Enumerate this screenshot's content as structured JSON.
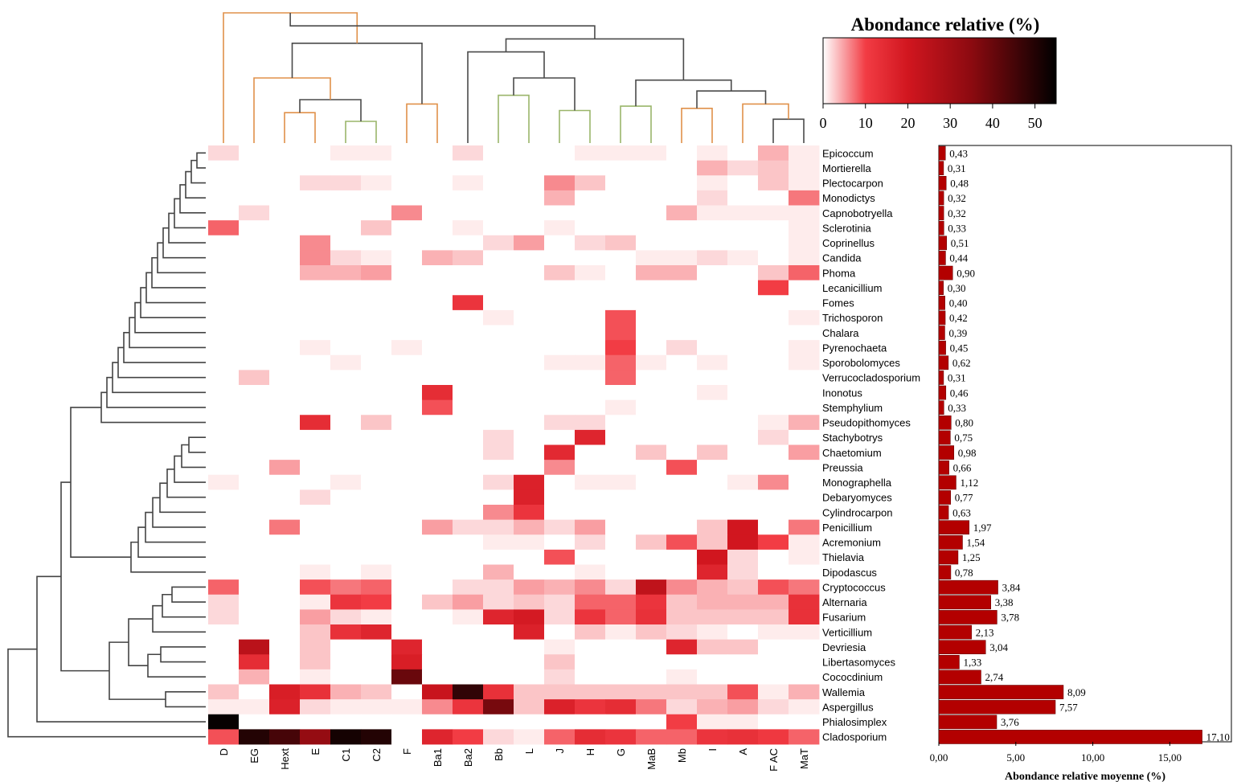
{
  "chart_data": [
    {
      "type": "heatmap",
      "title": "",
      "columns": [
        "D",
        "EG",
        "Hext",
        "E",
        "C1",
        "C2",
        "F",
        "Ba1",
        "Ba2",
        "Bb",
        "L",
        "J",
        "H",
        "G",
        "MaB",
        "Mb",
        "I",
        "A",
        "F AC",
        "MaT"
      ],
      "rows": [
        "Epicoccum",
        "Mortierella",
        "Plectocarpon",
        "Monodictys",
        "Capnobotryella",
        "Sclerotinia",
        "Coprinellus",
        "Candida",
        "Phoma",
        "Lecanicillium",
        "Fomes",
        "Trichosporon",
        "Chalara",
        "Pyrenochaeta",
        "Sporobolomyces",
        "Verrucocladosporium",
        "Inonotus",
        "Stemphylium",
        "Pseudopithomyces",
        "Stachybotrys",
        "Chaetomium",
        "Preussia",
        "Monographella",
        "Debaryomyces",
        "Cylindrocarpon",
        "Penicillium",
        "Acremonium",
        "Thielavia",
        "Dipodascus",
        "Cryptococcus",
        "Alternaria",
        "Fusarium",
        "Verticillium",
        "Devriesia",
        "Libertasomyces",
        "Cococdinium",
        "Wallemia",
        "Aspergillus",
        "Phialosimplex",
        "Cladosporium"
      ],
      "values": [
        [
          2,
          0,
          0,
          0,
          1,
          1,
          0,
          0,
          2,
          0,
          0,
          0,
          1,
          1,
          1,
          0,
          1,
          0,
          4,
          1
        ],
        [
          0,
          0,
          0,
          0,
          0,
          0,
          0,
          0,
          0,
          0,
          0,
          0,
          0,
          0,
          0,
          0,
          4,
          2,
          3,
          1
        ],
        [
          0,
          0,
          0,
          2,
          2,
          1,
          0,
          0,
          1,
          0,
          0,
          6,
          3,
          0,
          0,
          0,
          1,
          0,
          3,
          1
        ],
        [
          0,
          0,
          0,
          0,
          0,
          0,
          0,
          0,
          0,
          0,
          0,
          4,
          0,
          0,
          0,
          0,
          2,
          0,
          0,
          7
        ],
        [
          0,
          2,
          0,
          0,
          0,
          0,
          6,
          0,
          0,
          0,
          0,
          0,
          0,
          0,
          0,
          4,
          1,
          1,
          1,
          1
        ],
        [
          8,
          0,
          0,
          0,
          0,
          3,
          0,
          0,
          1,
          0,
          0,
          1,
          0,
          0,
          0,
          0,
          0,
          0,
          0,
          1
        ],
        [
          0,
          0,
          0,
          6,
          0,
          0,
          0,
          0,
          0,
          2,
          5,
          0,
          2,
          3,
          0,
          0,
          0,
          0,
          0,
          1
        ],
        [
          0,
          0,
          0,
          6,
          2,
          1,
          0,
          4,
          3,
          0,
          0,
          0,
          0,
          0,
          1,
          1,
          2,
          1,
          0,
          1
        ],
        [
          0,
          0,
          0,
          4,
          4,
          5,
          0,
          0,
          0,
          0,
          0,
          3,
          1,
          0,
          4,
          4,
          0,
          0,
          3,
          8
        ],
        [
          0,
          0,
          0,
          0,
          0,
          0,
          0,
          0,
          0,
          0,
          0,
          0,
          0,
          0,
          0,
          0,
          0,
          0,
          10,
          0
        ],
        [
          0,
          0,
          0,
          0,
          0,
          0,
          0,
          0,
          12,
          0,
          0,
          0,
          0,
          0,
          0,
          0,
          0,
          0,
          0,
          0
        ],
        [
          0,
          0,
          0,
          0,
          0,
          0,
          0,
          0,
          0,
          1,
          0,
          0,
          0,
          9,
          0,
          0,
          0,
          0,
          0,
          1
        ],
        [
          0,
          0,
          0,
          0,
          0,
          0,
          0,
          0,
          0,
          0,
          0,
          0,
          0,
          9,
          0,
          0,
          0,
          0,
          0,
          0
        ],
        [
          0,
          0,
          0,
          1,
          0,
          0,
          1,
          0,
          0,
          0,
          0,
          0,
          0,
          10,
          0,
          2,
          0,
          0,
          0,
          1
        ],
        [
          0,
          0,
          0,
          0,
          1,
          0,
          0,
          0,
          0,
          0,
          0,
          1,
          1,
          8,
          1,
          0,
          1,
          0,
          0,
          1
        ],
        [
          0,
          3,
          0,
          0,
          0,
          0,
          0,
          0,
          0,
          0,
          0,
          0,
          0,
          8,
          0,
          0,
          0,
          0,
          0,
          0
        ],
        [
          0,
          0,
          0,
          0,
          0,
          0,
          0,
          14,
          0,
          0,
          0,
          0,
          0,
          0,
          0,
          0,
          1,
          0,
          0,
          0
        ],
        [
          0,
          0,
          0,
          0,
          0,
          0,
          0,
          9,
          0,
          0,
          0,
          0,
          0,
          1,
          0,
          0,
          0,
          0,
          0,
          0
        ],
        [
          0,
          0,
          0,
          14,
          0,
          3,
          0,
          0,
          0,
          0,
          0,
          2,
          2,
          0,
          0,
          0,
          0,
          0,
          1,
          4
        ],
        [
          0,
          0,
          0,
          0,
          0,
          0,
          0,
          0,
          0,
          2,
          0,
          0,
          16,
          0,
          0,
          0,
          0,
          0,
          2,
          0
        ],
        [
          0,
          0,
          0,
          0,
          0,
          0,
          0,
          0,
          0,
          2,
          0,
          15,
          0,
          0,
          3,
          0,
          3,
          0,
          0,
          5
        ],
        [
          0,
          0,
          5,
          0,
          0,
          0,
          0,
          0,
          0,
          0,
          0,
          6,
          0,
          0,
          0,
          9,
          0,
          0,
          0,
          0
        ],
        [
          1,
          0,
          0,
          0,
          1,
          0,
          0,
          0,
          0,
          2,
          17,
          0,
          1,
          1,
          0,
          0,
          0,
          1,
          6,
          0
        ],
        [
          0,
          0,
          0,
          2,
          0,
          0,
          0,
          0,
          0,
          0,
          17,
          0,
          0,
          0,
          0,
          0,
          0,
          0,
          0,
          0
        ],
        [
          0,
          0,
          0,
          0,
          0,
          0,
          0,
          0,
          0,
          6,
          12,
          0,
          0,
          0,
          0,
          0,
          0,
          0,
          0,
          0
        ],
        [
          0,
          0,
          7,
          0,
          0,
          0,
          0,
          5,
          2,
          2,
          4,
          2,
          5,
          0,
          0,
          0,
          3,
          20,
          0,
          7
        ],
        [
          0,
          0,
          0,
          0,
          0,
          0,
          0,
          0,
          0,
          1,
          1,
          0,
          2,
          0,
          3,
          9,
          3,
          20,
          10,
          1
        ],
        [
          0,
          0,
          0,
          0,
          0,
          0,
          0,
          0,
          0,
          0,
          0,
          9,
          0,
          0,
          0,
          0,
          20,
          2,
          0,
          1
        ],
        [
          0,
          0,
          0,
          1,
          0,
          1,
          0,
          0,
          0,
          4,
          0,
          0,
          1,
          0,
          0,
          0,
          16,
          2,
          0,
          0
        ],
        [
          8,
          0,
          0,
          9,
          7,
          8,
          0,
          0,
          2,
          2,
          5,
          4,
          6,
          2,
          24,
          6,
          4,
          3,
          9,
          7
        ],
        [
          2,
          0,
          0,
          1,
          12,
          10,
          0,
          3,
          5,
          2,
          3,
          2,
          8,
          8,
          12,
          3,
          4,
          4,
          4,
          13
        ],
        [
          2,
          0,
          0,
          5,
          2,
          1,
          0,
          0,
          1,
          16,
          19,
          2,
          12,
          8,
          13,
          3,
          3,
          3,
          3,
          13
        ],
        [
          0,
          0,
          0,
          3,
          13,
          16,
          0,
          0,
          0,
          0,
          17,
          0,
          3,
          1,
          3,
          2,
          1,
          0,
          1,
          1
        ],
        [
          0,
          25,
          0,
          3,
          0,
          0,
          16,
          0,
          0,
          0,
          0,
          1,
          0,
          0,
          0,
          16,
          3,
          3,
          0,
          0
        ],
        [
          0,
          14,
          0,
          3,
          0,
          0,
          18,
          0,
          0,
          0,
          0,
          3,
          0,
          0,
          0,
          0,
          0,
          0,
          0,
          0
        ],
        [
          0,
          4,
          0,
          1,
          0,
          0,
          40,
          0,
          0,
          0,
          0,
          2,
          0,
          0,
          0,
          1,
          0,
          0,
          0,
          0
        ],
        [
          3,
          0,
          18,
          13,
          4,
          3,
          0,
          22,
          48,
          13,
          3,
          3,
          3,
          3,
          3,
          3,
          3,
          9,
          1,
          4
        ],
        [
          1,
          1,
          17,
          2,
          1,
          1,
          1,
          6,
          12,
          38,
          3,
          17,
          12,
          14,
          7,
          2,
          4,
          5,
          2,
          1
        ],
        [
          54,
          0,
          0,
          0,
          0,
          0,
          0,
          0,
          0,
          0,
          0,
          0,
          0,
          0,
          0,
          10,
          1,
          1,
          0,
          0
        ],
        [
          9,
          50,
          45,
          33,
          52,
          50,
          0,
          16,
          10,
          2,
          1,
          8,
          14,
          12,
          8,
          8,
          12,
          13,
          11,
          8
        ]
      ],
      "color_scale": {
        "title": "Abondance relative (%)",
        "min": 0,
        "max": 55,
        "ticks": [
          "0",
          "10",
          "20",
          "30",
          "40",
          "50"
        ],
        "stops": [
          {
            "v": 0,
            "color": "#ffffff"
          },
          {
            "v": 10,
            "color": "#f23c44"
          },
          {
            "v": 20,
            "color": "#d1161f"
          },
          {
            "v": 35,
            "color": "#8c0a10"
          },
          {
            "v": 55,
            "color": "#000000"
          }
        ]
      },
      "dendrograms": {
        "rows": "left",
        "columns": "top"
      }
    },
    {
      "type": "bar",
      "orientation": "horizontal",
      "categories": [
        "Epicoccum",
        "Mortierella",
        "Plectocarpon",
        "Monodictys",
        "Capnobotryella",
        "Sclerotinia",
        "Coprinellus",
        "Candida",
        "Phoma",
        "Lecanicillium",
        "Fomes",
        "Trichosporon",
        "Chalara",
        "Pyrenochaeta",
        "Sporobolomyces",
        "Verrucocladosporium",
        "Inonotus",
        "Stemphylium",
        "Pseudopithomyces",
        "Stachybotrys",
        "Chaetomium",
        "Preussia",
        "Monographella",
        "Debaryomyces",
        "Cylindrocarpon",
        "Penicillium",
        "Acremonium",
        "Thielavia",
        "Dipodascus",
        "Cryptococcus",
        "Alternaria",
        "Fusarium",
        "Verticillium",
        "Devriesia",
        "Libertasomyces",
        "Cococdinium",
        "Wallemia",
        "Aspergillus",
        "Phialosimplex",
        "Cladosporium"
      ],
      "values": [
        0.43,
        0.31,
        0.48,
        0.32,
        0.32,
        0.33,
        0.51,
        0.44,
        0.9,
        0.3,
        0.4,
        0.42,
        0.39,
        0.45,
        0.62,
        0.31,
        0.46,
        0.33,
        0.8,
        0.75,
        0.98,
        0.66,
        1.12,
        0.77,
        0.63,
        1.97,
        1.54,
        1.25,
        0.78,
        3.84,
        3.38,
        3.78,
        2.13,
        3.04,
        1.33,
        2.74,
        8.09,
        7.57,
        3.76,
        17.1
      ],
      "value_labels": [
        "0,43",
        "0,31",
        "0,48",
        "0,32",
        "0,32",
        "0,33",
        "0,51",
        "0,44",
        "0,90",
        "0,30",
        "0,40",
        "0,42",
        "0,39",
        "0,45",
        "0,62",
        "0,31",
        "0,46",
        "0,33",
        "0,80",
        "0,75",
        "0,98",
        "0,66",
        "1,12",
        "0,77",
        "0,63",
        "1,97",
        "1,54",
        "1,25",
        "0,78",
        "3,84",
        "3,38",
        "3,78",
        "2,13",
        "3,04",
        "1,33",
        "2,74",
        "8,09",
        "7,57",
        "3,76",
        "17,10"
      ],
      "xlabel": "Abondance relative moyenne (%)",
      "xlim": [
        0,
        19
      ],
      "xticks": [
        0,
        5,
        10,
        15
      ],
      "xtick_labels": [
        "0,00",
        "5,00",
        "10,00",
        "15,00"
      ],
      "bar_color": "#b30000"
    }
  ]
}
